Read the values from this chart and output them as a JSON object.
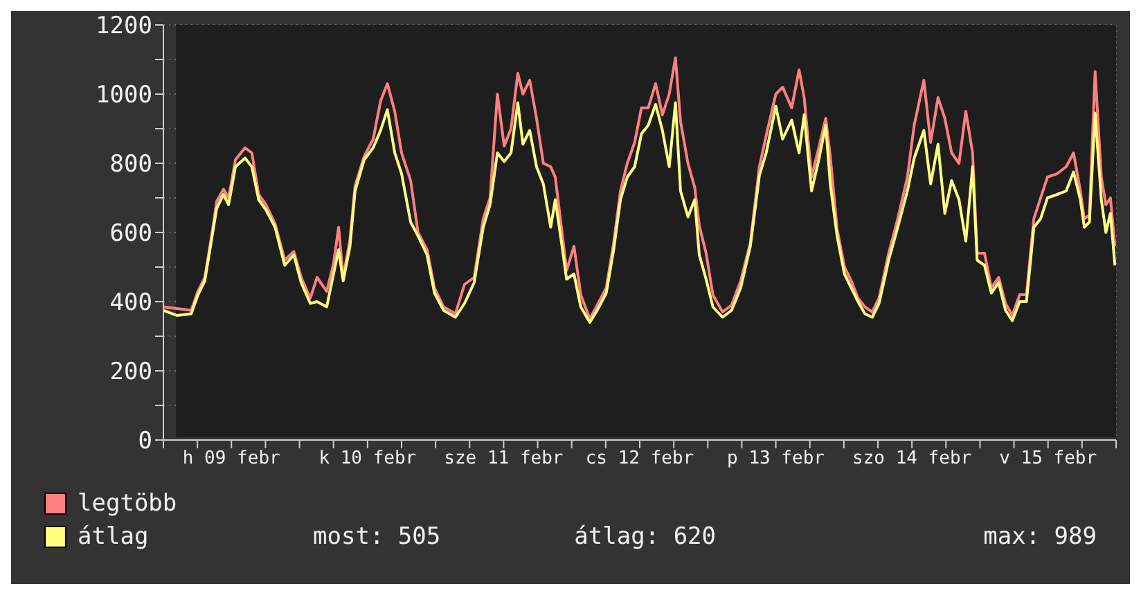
{
  "chart_data": {
    "type": "line",
    "x": [
      "--02-09T00:00",
      "--02-09T02:24",
      "--02-09T04:54",
      "--02-09T06:06",
      "--02-09T07:18",
      "--02-09T08:36",
      "--02-09T09:24",
      "--02-09T10:36",
      "--02-09T11:30",
      "--02-09T12:42",
      "--02-09T14:24",
      "--02-09T15:36",
      "--02-09T16:48",
      "--02-09T18:06",
      "--02-09T19:42",
      "--02-09T21:24",
      "--02-09T23:00",
      "--02-10T00:18",
      "--02-10T01:54",
      "--02-10T03:06",
      "--02-10T04:48",
      "--02-10T06:00",
      "--02-10T06:54",
      "--02-10T07:42",
      "--02-10T08:54",
      "--02-10T09:48",
      "--02-10T11:24",
      "--02-10T13:00",
      "--02-10T14:18",
      "--02-10T15:30",
      "--02-10T16:48",
      "--02-10T18:00",
      "--02-10T19:36",
      "--02-10T20:54",
      "--02-10T22:30",
      "--02-10T23:48",
      "--02-11T01:24",
      "--02-11T03:30",
      "--02-11T05:06",
      "--02-11T06:48",
      "--02-11T08:24",
      "--02-11T09:36",
      "--02-11T10:54",
      "--02-11T12:06",
      "--02-11T13:18",
      "--02-11T14:30",
      "--02-11T15:24",
      "--02-11T16:36",
      "--02-11T17:48",
      "--02-11T19:00",
      "--02-11T20:18",
      "--02-11T21:06",
      "--02-11T22:18",
      "--02-11T23:06",
      "--02-12T00:24",
      "--02-12T01:36",
      "--02-12T03:12",
      "--02-12T04:30",
      "--02-12T06:06",
      "--02-12T07:24",
      "--02-12T08:36",
      "--02-12T09:48",
      "--02-12T11:06",
      "--02-12T12:18",
      "--02-12T13:30",
      "--02-12T14:48",
      "--02-12T16:00",
      "--02-12T17:12",
      "--02-12T18:18",
      "--02-12T19:12",
      "--02-12T20:30",
      "--02-12T21:42",
      "--02-12T22:30",
      "--02-12T23:42",
      "--02-13T00:54",
      "--02-13T02:36",
      "--02-13T04:12",
      "--02-13T05:48",
      "--02-13T07:30",
      "--02-13T09:06",
      "--02-13T10:18",
      "--02-13T12:00",
      "--02-13T13:12",
      "--02-13T14:48",
      "--02-13T16:06",
      "--02-13T17:00",
      "--02-13T18:18",
      "--02-13T19:30",
      "--02-13T20:48",
      "--02-13T21:36",
      "--02-13T22:48",
      "--02-14T00:06",
      "--02-14T01:18",
      "--02-14T02:30",
      "--02-14T03:42",
      "--02-14T05:00",
      "--02-14T06:12",
      "--02-14T07:54",
      "--02-14T09:30",
      "--02-14T11:12",
      "--02-14T12:24",
      "--02-14T14:06",
      "--02-14T15:18",
      "--02-14T16:36",
      "--02-14T17:48",
      "--02-14T19:00",
      "--02-14T20:18",
      "--02-14T21:30",
      "--02-14T22:42",
      "--02-14T23:30",
      "--02-15T00:48",
      "--02-15T02:00",
      "--02-15T03:18",
      "--02-15T04:30",
      "--02-15T05:42",
      "--02-15T07:00",
      "--02-15T08:12",
      "--02-15T09:30",
      "--02-15T10:42",
      "--02-15T11:54",
      "--02-15T13:36",
      "--02-15T15:12",
      "--02-15T16:30",
      "--02-15T17:42",
      "--02-15T18:24",
      "--02-15T19:18",
      "--02-15T20:18",
      "--02-15T21:24",
      "--02-15T22:12",
      "--02-15T23:00",
      "--02-15T23:48"
    ],
    "series": [
      {
        "name": "legtöbb",
        "color": "#ff7f7f",
        "values": [
          385,
          380,
          375,
          430,
          470,
          600,
          690,
          725,
          700,
          810,
          845,
          830,
          710,
          680,
          625,
          520,
          545,
          470,
          410,
          470,
          430,
          510,
          615,
          470,
          580,
          735,
          820,
          870,
          980,
          1030,
          950,
          830,
          750,
          600,
          550,
          440,
          385,
          365,
          450,
          470,
          640,
          700,
          1000,
          850,
          900,
          1060,
          1000,
          1040,
          930,
          800,
          790,
          760,
          600,
          490,
          560,
          420,
          350,
          390,
          440,
          570,
          720,
          800,
          860,
          960,
          960,
          1030,
          940,
          1000,
          1105,
          920,
          800,
          730,
          620,
          540,
          420,
          370,
          390,
          460,
          570,
          790,
          880,
          1000,
          1020,
          960,
          1070,
          990,
          760,
          840,
          930,
          820,
          610,
          500,
          460,
          410,
          385,
          370,
          410,
          540,
          640,
          760,
          910,
          1040,
          860,
          990,
          930,
          830,
          800,
          950,
          830,
          540,
          540,
          440,
          470,
          395,
          360,
          420,
          420,
          640,
          700,
          760,
          770,
          790,
          830,
          720,
          640,
          650,
          1065,
          760,
          680,
          700,
          560
        ]
      },
      {
        "name": "átlag",
        "color": "#ffff7f",
        "values": [
          375,
          360,
          365,
          420,
          460,
          590,
          670,
          710,
          680,
          790,
          815,
          790,
          695,
          665,
          615,
          505,
          535,
          455,
          395,
          400,
          385,
          480,
          550,
          460,
          560,
          720,
          810,
          845,
          895,
          955,
          830,
          770,
          630,
          590,
          535,
          425,
          375,
          355,
          395,
          455,
          615,
          680,
          830,
          805,
          830,
          975,
          855,
          895,
          790,
          740,
          615,
          695,
          560,
          465,
          480,
          385,
          340,
          375,
          425,
          550,
          695,
          760,
          790,
          885,
          910,
          970,
          895,
          790,
          975,
          720,
          645,
          695,
          535,
          465,
          385,
          355,
          375,
          440,
          560,
          765,
          830,
          965,
          870,
          925,
          830,
          940,
          720,
          805,
          910,
          740,
          590,
          480,
          440,
          400,
          365,
          355,
          395,
          520,
          615,
          720,
          815,
          895,
          740,
          855,
          655,
          750,
          695,
          575,
          790,
          520,
          505,
          425,
          455,
          375,
          345,
          400,
          400,
          615,
          640,
          700,
          710,
          720,
          775,
          695,
          615,
          630,
          945,
          695,
          600,
          655,
          505
        ]
      }
    ],
    "xlim": [
      "--02-09T00:00",
      "--02-16T00:00"
    ],
    "xticks": [
      {
        "value": "--02-09T00:00",
        "label": null
      },
      {
        "value": "--02-09T06:00",
        "label": null
      },
      {
        "value": "--02-09T12:00",
        "label": "h 09 febr"
      },
      {
        "value": "--02-09T18:00",
        "label": null
      },
      {
        "value": "--02-10T00:00",
        "label": null
      },
      {
        "value": "--02-10T06:00",
        "label": null
      },
      {
        "value": "--02-10T12:00",
        "label": "k 10 febr"
      },
      {
        "value": "--02-10T18:00",
        "label": null
      },
      {
        "value": "--02-11T00:00",
        "label": null
      },
      {
        "value": "--02-11T06:00",
        "label": null
      },
      {
        "value": "--02-11T12:00",
        "label": "sze 11 febr"
      },
      {
        "value": "--02-11T18:00",
        "label": null
      },
      {
        "value": "--02-12T00:00",
        "label": null
      },
      {
        "value": "--02-12T06:00",
        "label": null
      },
      {
        "value": "--02-12T12:00",
        "label": "cs 12 febr"
      },
      {
        "value": "--02-12T18:00",
        "label": null
      },
      {
        "value": "--02-13T00:00",
        "label": null
      },
      {
        "value": "--02-13T06:00",
        "label": null
      },
      {
        "value": "--02-13T12:00",
        "label": "p 13 febr"
      },
      {
        "value": "--02-13T18:00",
        "label": null
      },
      {
        "value": "--02-14T00:00",
        "label": null
      },
      {
        "value": "--02-14T06:00",
        "label": null
      },
      {
        "value": "--02-14T12:00",
        "label": "szo 14 febr"
      },
      {
        "value": "--02-14T18:00",
        "label": null
      },
      {
        "value": "--02-15T00:00",
        "label": null
      },
      {
        "value": "--02-15T06:00",
        "label": null
      },
      {
        "value": "--02-15T12:00",
        "label": "v 15 febr"
      },
      {
        "value": "--02-15T18:00",
        "label": null
      },
      {
        "value": "--02-16T00:00",
        "label": null
      }
    ],
    "ylim": [
      0,
      1200
    ],
    "yticks": [
      0,
      {
        "value": 100,
        "label": null
      },
      200,
      {
        "value": 300,
        "label": null
      },
      400,
      {
        "value": 500,
        "label": null
      },
      600,
      {
        "value": 700,
        "label": null
      },
      800,
      {
        "value": 900,
        "label": null
      },
      1000,
      {
        "value": 1100,
        "label": null
      },
      1200
    ],
    "grid": true,
    "legend": "bottom left",
    "annotations": [
      "most: 505",
      "átlag: 620",
      "max: 989"
    ]
  }
}
